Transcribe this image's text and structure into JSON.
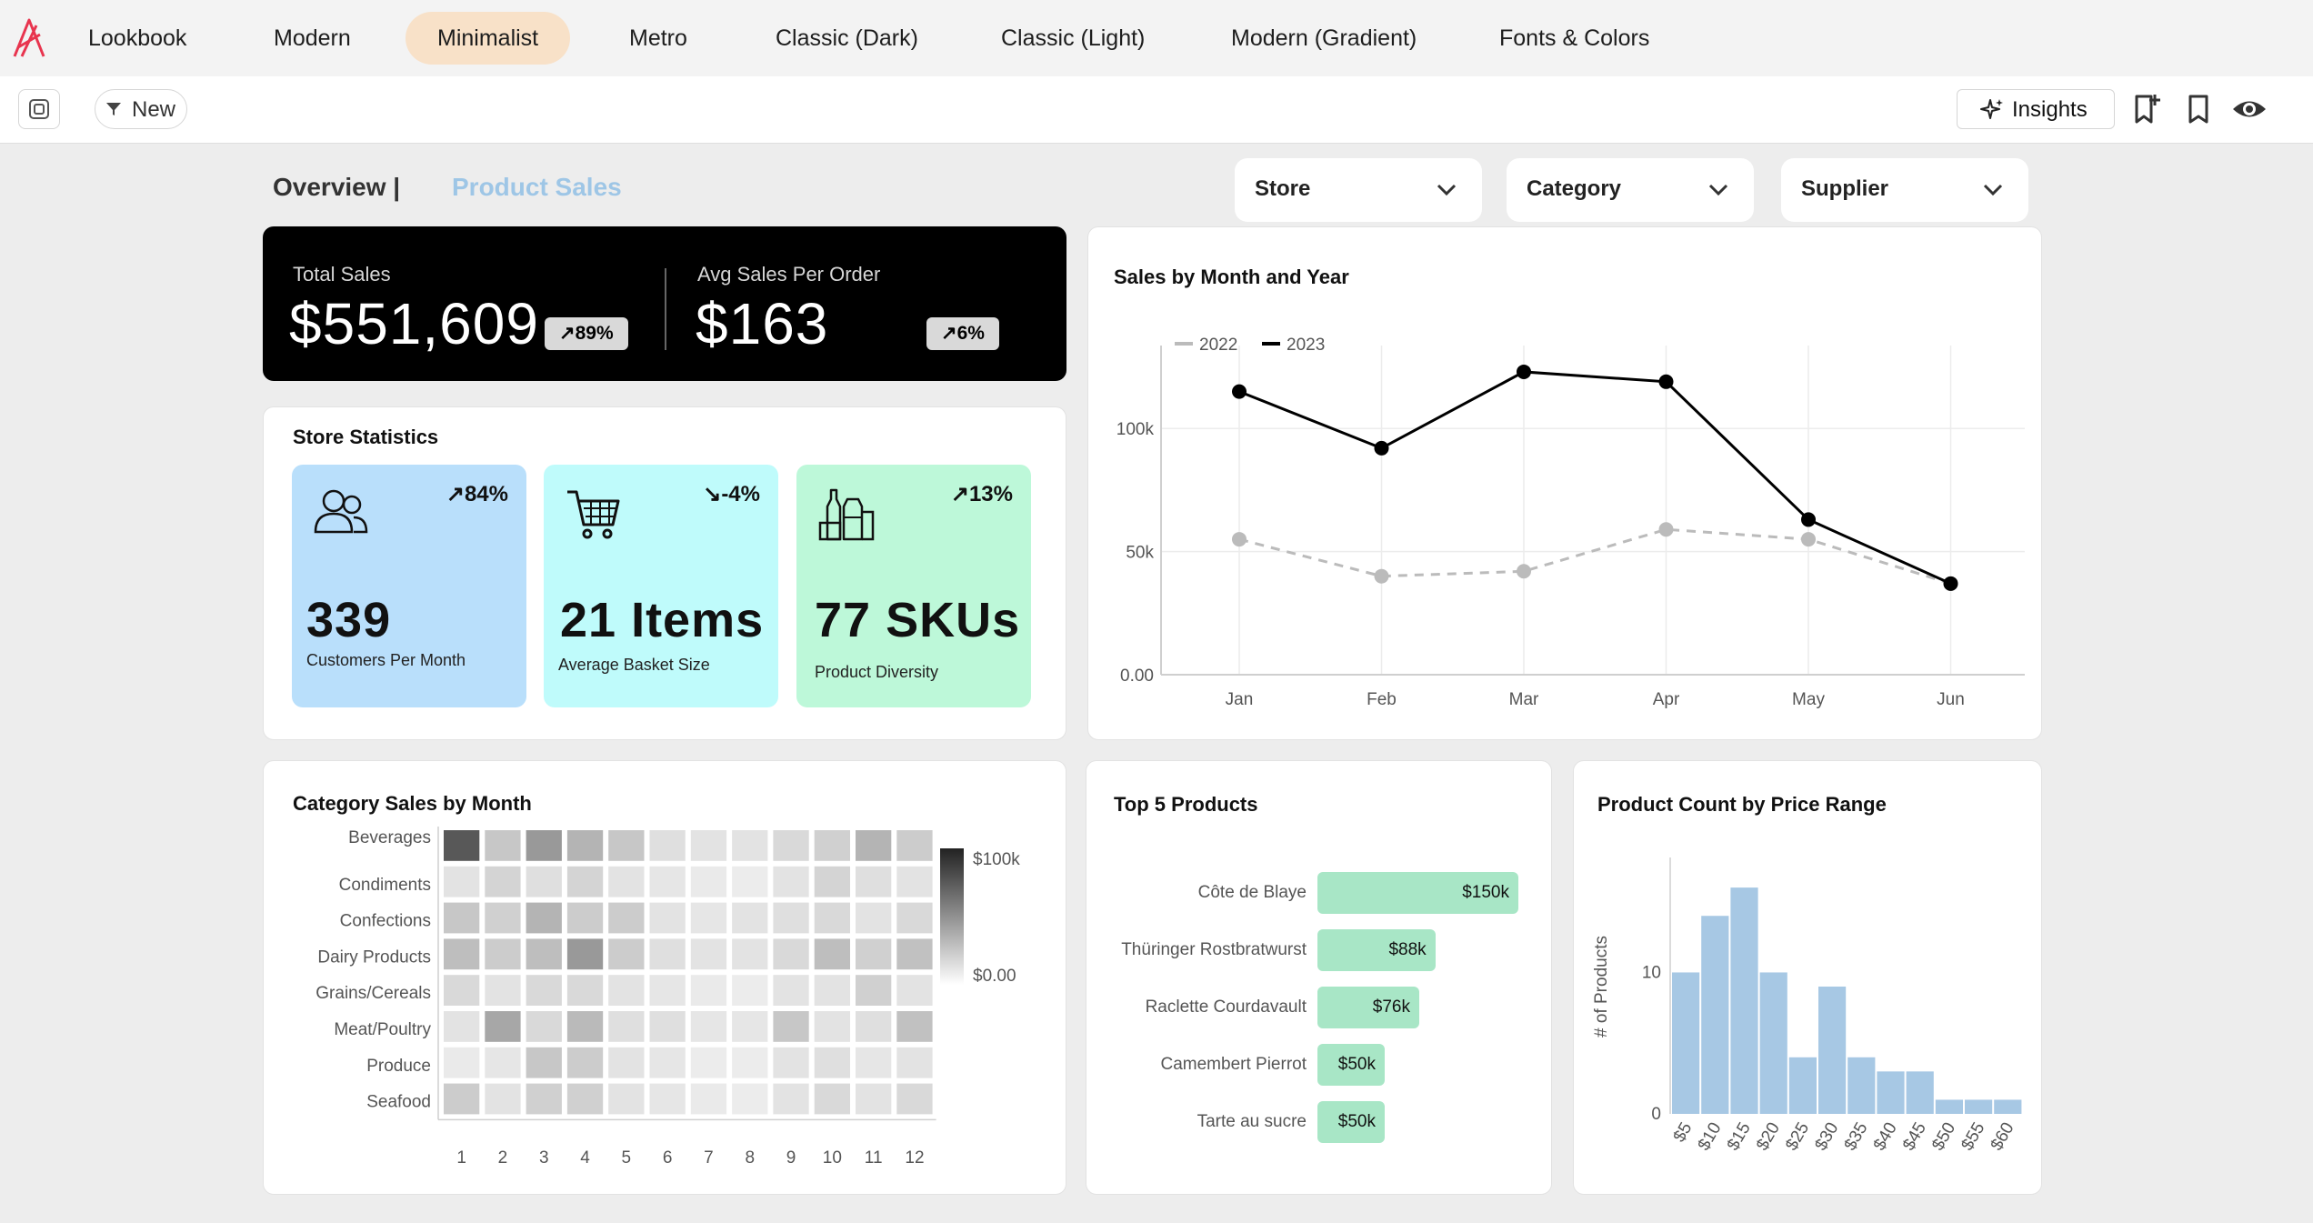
{
  "nav": {
    "tabs": [
      {
        "label": "Lookbook"
      },
      {
        "label": "Modern"
      },
      {
        "label": "Minimalist"
      },
      {
        "label": "Metro"
      },
      {
        "label": "Classic (Dark)"
      },
      {
        "label": "Classic (Light)"
      },
      {
        "label": "Modern (Gradient)"
      },
      {
        "label": "Fonts & Colors"
      }
    ],
    "active": "Minimalist"
  },
  "toolbar": {
    "new_label": "New",
    "insights_label": "Insights"
  },
  "header": {
    "title": "Overview |",
    "subtitle": "Product Sales"
  },
  "filters": [
    {
      "label": "Store"
    },
    {
      "label": "Category"
    },
    {
      "label": "Supplier"
    }
  ],
  "kpi": {
    "total_sales_label": "Total Sales",
    "total_sales_value": "$551,609",
    "total_sales_change": "↗89%",
    "avg_label": "Avg Sales Per Order",
    "avg_value": "$163",
    "avg_change": "↗6%"
  },
  "store_stats": {
    "title": "Store Statistics",
    "cards": [
      {
        "change": "↗84%",
        "value": "339",
        "caption": "Customers Per Month",
        "color": "#b9dffb",
        "icon": "users-icon"
      },
      {
        "change": "↘-4%",
        "value": "21 Items",
        "caption": "Average Basket Size",
        "color": "#bffbfb",
        "icon": "shopping-cart-icon"
      },
      {
        "change": "↗13%",
        "value": "77 SKUs",
        "caption": "Product Diversity",
        "color": "#bdf8d9",
        "icon": "groceries-icon"
      }
    ]
  },
  "colors": {
    "accent_tab": "#f8e1c8",
    "subtitle": "#9ec6e6",
    "bar_green": "#a8e6c6",
    "hist_blue": "#a7c8e4",
    "logo_red": "#e8344e"
  },
  "chart_data": [
    {
      "id": "sales-line",
      "type": "line",
      "title": "Sales by Month and Year",
      "categories": [
        "Jan",
        "Feb",
        "Mar",
        "Apr",
        "May",
        "Jun"
      ],
      "ylim": [
        0,
        130000
      ],
      "yticks": [
        "0.00",
        "50k",
        "100k"
      ],
      "ytick_values": [
        0,
        50000,
        100000
      ],
      "series": [
        {
          "name": "2022",
          "color": "#bbbbbb",
          "dashed": true,
          "values": [
            55000,
            40000,
            42000,
            59000,
            55000,
            37000
          ]
        },
        {
          "name": "2023",
          "color": "#000000",
          "dashed": false,
          "values": [
            115000,
            92000,
            123000,
            119000,
            63000,
            37000
          ]
        }
      ],
      "legend": "top-left"
    },
    {
      "id": "category-heatmap",
      "type": "heatmap",
      "title": "Category Sales by Month",
      "rows": [
        "Beverages",
        "Condiments",
        "Confections",
        "Dairy Products",
        "Grains/Cereals",
        "Meat/Poultry",
        "Produce",
        "Seafood"
      ],
      "columns": [
        "1",
        "2",
        "3",
        "4",
        "5",
        "6",
        "7",
        "8",
        "9",
        "10",
        "11",
        "12"
      ],
      "values": [
        [
          85,
          25,
          50,
          35,
          25,
          12,
          10,
          10,
          15,
          20,
          35,
          22
        ],
        [
          10,
          18,
          12,
          18,
          10,
          8,
          6,
          5,
          10,
          18,
          12,
          10
        ],
        [
          25,
          20,
          35,
          22,
          22,
          10,
          8,
          10,
          12,
          15,
          10,
          15
        ],
        [
          30,
          22,
          30,
          50,
          22,
          12,
          10,
          10,
          15,
          30,
          20,
          28
        ],
        [
          15,
          10,
          15,
          15,
          10,
          8,
          6,
          5,
          10,
          10,
          20,
          10
        ],
        [
          10,
          42,
          15,
          32,
          12,
          12,
          8,
          8,
          25,
          10,
          12,
          28
        ],
        [
          6,
          8,
          25,
          22,
          10,
          8,
          5,
          5,
          10,
          12,
          8,
          10
        ],
        [
          22,
          10,
          20,
          20,
          10,
          8,
          6,
          5,
          10,
          15,
          10,
          15
        ]
      ],
      "scale_min_label": "$0.00",
      "scale_max_label": "$100k"
    },
    {
      "id": "top-products",
      "type": "bar",
      "title": "Top 5 Products",
      "categories": [
        "Côte de Blaye",
        "Thüringer Rostbratwurst",
        "Raclette Courdavault",
        "Camembert Pierrot",
        "Tarte au sucre"
      ],
      "values": [
        150000,
        88000,
        76000,
        50000,
        50000
      ],
      "labels": [
        "$150k",
        "$88k",
        "$76k",
        "$50k",
        "$50k"
      ]
    },
    {
      "id": "price-hist",
      "type": "bar",
      "title": "Product Count by Price Range",
      "categories": [
        "$5",
        "$10",
        "$15",
        "$20",
        "$25",
        "$30",
        "$35",
        "$40",
        "$45",
        "$50",
        "$55",
        "$60"
      ],
      "values": [
        10,
        14,
        16,
        10,
        4,
        9,
        4,
        3,
        3,
        1,
        1,
        1
      ],
      "ylabel": "# of Products",
      "ylim": [
        0,
        18
      ],
      "yticks": [
        "0",
        "10"
      ],
      "ytick_values": [
        0,
        10
      ]
    }
  ]
}
